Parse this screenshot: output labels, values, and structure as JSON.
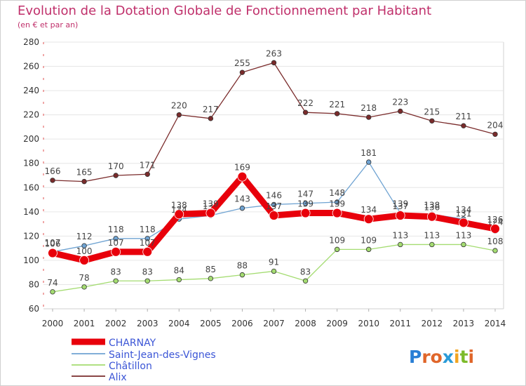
{
  "chart_data": {
    "type": "line",
    "title": "Evolution de la Dotation Globale de Fonctionnement par Habitant",
    "subtitle": "(en € et par an)",
    "x": [
      "2000",
      "2001",
      "2002",
      "2003",
      "2004",
      "2005",
      "2006",
      "2007",
      "2008",
      "2009",
      "2010",
      "2011",
      "2012",
      "2013",
      "2014"
    ],
    "ylim": [
      60,
      280
    ],
    "yticks": [
      60,
      80,
      100,
      120,
      140,
      160,
      180,
      200,
      220,
      240,
      260,
      280
    ],
    "series": [
      {
        "name": "CHARNAY",
        "color": "#e8000b",
        "values": [
          106,
          100,
          107,
          107,
          138,
          139,
          169,
          137,
          139,
          139,
          134,
          137,
          136,
          131,
          126
        ]
      },
      {
        "name": "Saint-Jean-des-Vignes",
        "color": "#6fa3d2",
        "values": [
          107,
          112,
          118,
          118,
          134,
          137,
          143,
          146,
          147,
          148,
          181,
          139,
          138,
          134,
          124
        ]
      },
      {
        "name": "Châtillon",
        "color": "#a4dc71",
        "values": [
          74,
          78,
          83,
          83,
          84,
          85,
          88,
          91,
          83,
          109,
          109,
          113,
          113,
          113,
          108
        ]
      },
      {
        "name": "Alix",
        "color": "#7a2b2b",
        "values": [
          166,
          165,
          170,
          171,
          220,
          217,
          255,
          263,
          222,
          221,
          218,
          223,
          215,
          211,
          204
        ]
      }
    ]
  },
  "logo": {
    "text": "Proxiti"
  }
}
